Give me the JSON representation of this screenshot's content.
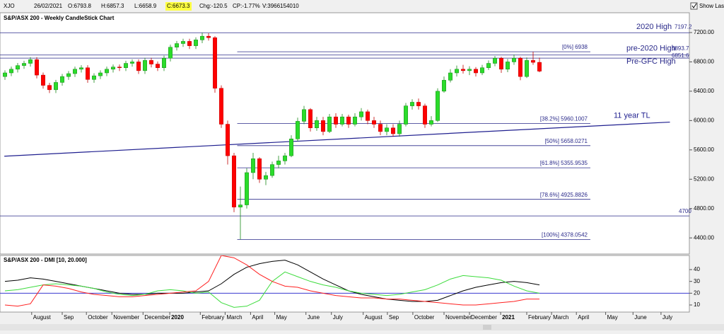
{
  "header": {
    "symbol": "XJO",
    "date": "26/02/2021",
    "open": "O:6793.8",
    "high": "H:6857.3",
    "low": "L:6658.9",
    "close": "C:6673.3",
    "change": "Chg:-120.5",
    "change_pct": "CP:-1.77%",
    "volume": "V:3966154010",
    "show_last": "Show Last"
  },
  "chart_data": [
    {
      "type": "candlestick",
      "title": "S&P/ASX 200 - Weekly CandleStick Chart",
      "x": [
        0,
        1,
        2,
        3,
        4,
        5,
        6,
        7,
        8,
        9,
        10,
        11,
        12,
        13,
        14,
        15,
        16,
        17,
        18,
        19,
        20,
        21,
        22,
        23,
        24,
        25,
        26,
        27,
        28,
        29,
        30,
        31,
        32,
        33,
        34,
        35,
        36,
        37,
        38,
        39,
        40,
        41,
        42,
        43,
        44,
        45,
        46,
        47,
        48,
        49,
        50,
        51,
        52,
        53,
        54,
        55,
        56,
        57,
        58,
        59,
        60,
        61,
        62,
        63,
        64,
        65,
        66,
        67,
        68,
        69,
        70,
        71,
        72,
        73,
        74,
        75,
        76,
        77,
        78,
        79,
        80,
        81,
        82,
        83,
        84
      ],
      "open": [
        6600,
        6650,
        6700,
        6750,
        6780,
        6830,
        6620,
        6480,
        6420,
        6520,
        6600,
        6640,
        6700,
        6720,
        6560,
        6610,
        6650,
        6700,
        6730,
        6720,
        6780,
        6800,
        6680,
        6820,
        6770,
        6720,
        6850,
        7000,
        7050,
        7080,
        7020,
        7100,
        7150,
        7130,
        6440,
        5950,
        5520,
        4820,
        4850,
        5290,
        5480,
        5200,
        5250,
        5400,
        5450,
        5520,
        5750,
        5990,
        6150,
        5900,
        6000,
        5850,
        6050,
        5950,
        6050,
        5950,
        6050,
        6120,
        6000,
        5950,
        5850,
        5900,
        5820,
        5950,
        6200,
        6250,
        6200,
        5950,
        6000,
        6400,
        6550,
        6650,
        6700,
        6680,
        6700,
        6650,
        6720,
        6780,
        6850,
        6700,
        6800,
        6850,
        6600,
        6820,
        6793.8
      ],
      "high": [
        6685,
        6735,
        6785,
        6815,
        6865,
        6865,
        6655,
        6515,
        6555,
        6635,
        6675,
        6735,
        6755,
        6755,
        6645,
        6685,
        6735,
        6765,
        6765,
        6815,
        6835,
        6835,
        6855,
        6855,
        6805,
        6885,
        7035,
        7085,
        7115,
        7115,
        7135,
        7197.2,
        7190,
        7150,
        6480,
        6000,
        5560,
        5100,
        5350,
        5560,
        5500,
        5300,
        5440,
        5520,
        5560,
        5800,
        6040,
        6200,
        6170,
        6050,
        6050,
        6090,
        6100,
        6090,
        6080,
        6100,
        6170,
        6150,
        6050,
        6000,
        5950,
        5950,
        6000,
        6240,
        6290,
        6300,
        6230,
        6060,
        6440,
        6600,
        6700,
        6750,
        6760,
        6740,
        6730,
        6760,
        6820,
        6880,
        6870,
        6840,
        6900,
        6870,
        6860,
        6938,
        6857.3
      ],
      "low": [
        6555,
        6605,
        6655,
        6705,
        6735,
        6575,
        6435,
        6375,
        6375,
        6475,
        6555,
        6595,
        6655,
        6515,
        6515,
        6565,
        6605,
        6655,
        6675,
        6675,
        6735,
        6635,
        6635,
        6725,
        6675,
        6675,
        6805,
        6955,
        7005,
        6975,
        6975,
        7055,
        7090,
        6380,
        5900,
        5400,
        4750,
        4380,
        4800,
        5200,
        5150,
        5120,
        5220,
        5350,
        5400,
        5500,
        5720,
        5950,
        5850,
        5860,
        5800,
        5830,
        5900,
        5920,
        5900,
        5920,
        6000,
        5950,
        5900,
        5800,
        5800,
        5780,
        5780,
        5920,
        6150,
        6150,
        5900,
        5920,
        5980,
        6380,
        6520,
        6600,
        6640,
        6620,
        6600,
        6620,
        6690,
        6740,
        6650,
        6660,
        6760,
        6550,
        6580,
        6760,
        6658.9
      ],
      "close": [
        6650,
        6700,
        6750,
        6780,
        6830,
        6620,
        6480,
        6420,
        6520,
        6600,
        6640,
        6700,
        6720,
        6560,
        6610,
        6650,
        6700,
        6730,
        6720,
        6780,
        6800,
        6680,
        6820,
        6770,
        6720,
        6850,
        7000,
        7050,
        7080,
        7020,
        7100,
        7150,
        7130,
        6440,
        5950,
        5520,
        4820,
        4850,
        5290,
        5480,
        5200,
        5250,
        5400,
        5450,
        5520,
        5750,
        5990,
        6150,
        5900,
        6000,
        5850,
        6050,
        5950,
        6050,
        5950,
        6050,
        6120,
        6000,
        5950,
        5850,
        5900,
        5820,
        5950,
        6200,
        6250,
        6200,
        5950,
        6000,
        6400,
        6550,
        6650,
        6700,
        6680,
        6700,
        6650,
        6720,
        6780,
        6850,
        6700,
        6800,
        6850,
        6600,
        6820,
        6793.8,
        6673.3
      ],
      "up_color": "#2bdc2b",
      "down_color": "#ff0000",
      "xlim": [
        -0.7778,
        107.5556
      ],
      "ylim": [
        4180,
        7470
      ],
      "yticks": [
        {
          "value": 4400,
          "label": "4400.00"
        },
        {
          "value": 4800,
          "label": "4800.00"
        },
        {
          "value": 5200,
          "label": "5200.00"
        },
        {
          "value": 5600,
          "label": "5600.00"
        },
        {
          "value": 6000,
          "label": "6000.00"
        },
        {
          "value": 6400,
          "label": "6400.00"
        },
        {
          "value": 6800,
          "label": "6800.00"
        },
        {
          "value": 7200,
          "label": "7200.00"
        }
      ],
      "levels": [
        {
          "label": "2020 High",
          "value": 7197.2,
          "value_label": "7197.2"
        },
        {
          "label": "pre-2020 High",
          "value": 6893.7,
          "value_label": "6893.7"
        },
        {
          "label": "Pre-GFC High",
          "value": 6851.6,
          "value_label": "6851.6"
        },
        {
          "label": "4700",
          "value": 4700
        }
      ],
      "fib": {
        "x": [
          36.5,
          92
        ],
        "levels": [
          {
            "label": "[0%] 6938",
            "value": 6938
          },
          {
            "label": "[38.2%] 5960.1007",
            "value": 5960.1007
          },
          {
            "label": "[50%] 5658.0271",
            "value": 5658.0271
          },
          {
            "label": "[61.8%] 5355.9535",
            "value": 5355.9535
          },
          {
            "label": "[78.6%] 4925.8826",
            "value": 4925.8826
          },
          {
            "label": "[100%] 4378.0542",
            "value": 4378.0542
          }
        ]
      },
      "trendline": {
        "label": "11 year TL",
        "x": [
          -0.1,
          104.5
        ],
        "values": [
          5514,
          5979
        ],
        "color": "#1f1f8f"
      }
    },
    {
      "type": "line",
      "title": "S&P/ASX 200 - DMI [10, 20.000]",
      "x": [
        0,
        2,
        4,
        6,
        8,
        10,
        12,
        14,
        16,
        18,
        20,
        22,
        24,
        26,
        28,
        30,
        32,
        34,
        36,
        38,
        40,
        42,
        44,
        46,
        48,
        50,
        52,
        54,
        56,
        58,
        60,
        62,
        64,
        66,
        68,
        70,
        72,
        74,
        76,
        78,
        80,
        82,
        84
      ],
      "series": [
        {
          "name": "ADX",
          "color": "#000000",
          "values": [
            30,
            31,
            33,
            32,
            30,
            28,
            26,
            24,
            22,
            20,
            19,
            19,
            20,
            20,
            20,
            21,
            22,
            28,
            36,
            42,
            45,
            47,
            48,
            44,
            38,
            32,
            27,
            22,
            19,
            17,
            15,
            14,
            13,
            13,
            14,
            18,
            22,
            25,
            27,
            29,
            30,
            29,
            27
          ]
        },
        {
          "name": "+DI",
          "color": "#3ddc3d",
          "values": [
            22,
            23,
            25,
            27,
            28,
            27,
            26,
            24,
            21,
            19,
            18,
            19,
            22,
            23,
            22,
            20,
            21,
            12,
            8,
            9,
            14,
            30,
            38,
            34,
            30,
            27,
            25,
            22,
            20,
            19,
            18,
            19,
            21,
            23,
            27,
            32,
            35,
            34,
            33,
            31,
            26,
            22,
            20
          ]
        },
        {
          "name": "-DI",
          "color": "#ff2020",
          "values": [
            10,
            9,
            11,
            27,
            26,
            24,
            21,
            19,
            18,
            17,
            17,
            18,
            19,
            20,
            21,
            22,
            30,
            52,
            50,
            44,
            36,
            30,
            26,
            25,
            22,
            20,
            18,
            17,
            16,
            16,
            15,
            15,
            14,
            13,
            12,
            11,
            10,
            10,
            11,
            12,
            13,
            15,
            15
          ]
        }
      ],
      "reference": 20,
      "reference_color": "#3a3ad0",
      "xlim": [
        -0.7778,
        107.5556
      ],
      "ylim": [
        4,
        52
      ],
      "yticks": [
        10,
        20,
        30,
        40
      ],
      "xticks": [
        {
          "value": 4.2,
          "label": "August"
        },
        {
          "value": 9,
          "label": "Sep"
        },
        {
          "value": 12.8,
          "label": "October"
        },
        {
          "value": 16.8,
          "label": "November"
        },
        {
          "value": 21.7,
          "label": "December"
        },
        {
          "value": 25.9,
          "label": "2020"
        },
        {
          "value": 30.7,
          "label": "February"
        },
        {
          "value": 34.6,
          "label": "March"
        },
        {
          "value": 38.6,
          "label": "April"
        },
        {
          "value": 42.4,
          "label": "May"
        },
        {
          "value": 47.3,
          "label": "June"
        },
        {
          "value": 51.3,
          "label": "July"
        },
        {
          "value": 56.3,
          "label": "August"
        },
        {
          "value": 60.1,
          "label": "Sep"
        },
        {
          "value": 64.1,
          "label": "October"
        },
        {
          "value": 69,
          "label": "November"
        },
        {
          "value": 73,
          "label": "December"
        },
        {
          "value": 77.9,
          "label": "2021"
        },
        {
          "value": 82,
          "label": "February"
        },
        {
          "value": 85.9,
          "label": "March"
        },
        {
          "value": 89.8,
          "label": "April"
        },
        {
          "value": 94.4,
          "label": "May"
        },
        {
          "value": 98.7,
          "label": "June"
        },
        {
          "value": 103.1,
          "label": "July"
        }
      ]
    }
  ]
}
